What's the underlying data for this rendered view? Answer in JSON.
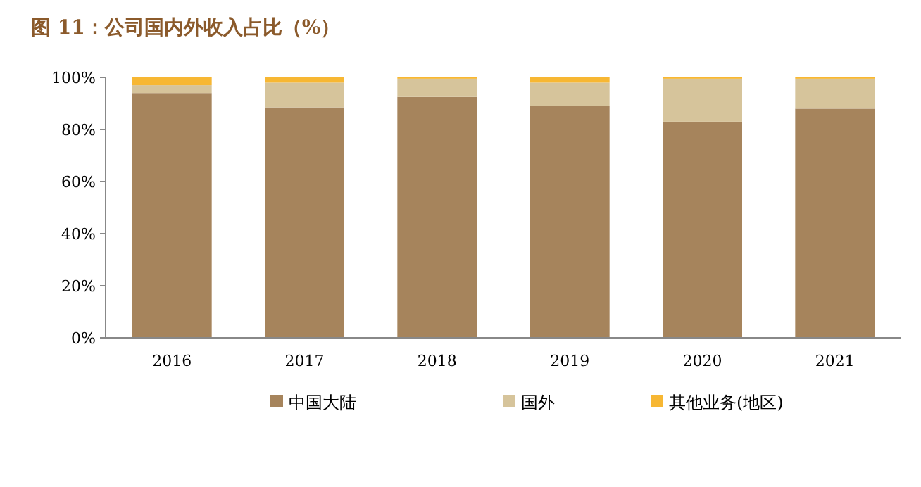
{
  "chart_data": {
    "type": "bar",
    "stacked": true,
    "title": "图 11：公司国内外收入占比（%）",
    "categories": [
      "2016",
      "2017",
      "2018",
      "2019",
      "2020",
      "2021"
    ],
    "series": [
      {
        "name": "中国大陆",
        "color": "#a6845c",
        "values": [
          94,
          88.5,
          92.5,
          89,
          83,
          88
        ]
      },
      {
        "name": "国外",
        "color": "#d6c49b",
        "values": [
          3,
          9.5,
          7,
          9,
          16.5,
          11.5
        ]
      },
      {
        "name": "其他业务(地区)",
        "color": "#f7b733",
        "values": [
          3,
          2,
          0.5,
          2,
          0.5,
          0.5
        ]
      }
    ],
    "ylim": [
      0,
      100
    ],
    "yticks": [
      {
        "value": 0,
        "label": "0%"
      },
      {
        "value": 20,
        "label": "20%"
      },
      {
        "value": 40,
        "label": "40%"
      },
      {
        "value": 60,
        "label": "60%"
      },
      {
        "value": 80,
        "label": "80%"
      },
      {
        "value": 100,
        "label": "100%"
      }
    ],
    "grid": false,
    "legend": "bottom"
  }
}
